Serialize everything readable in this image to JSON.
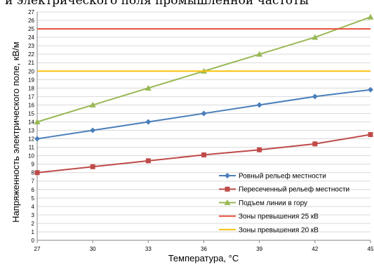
{
  "caption": "и электрического поля промышленной частоты",
  "chart_data": {
    "type": "line",
    "title": "",
    "xlabel": "Температура, °С",
    "ylabel": "Напряженность электрического поле, кВ/м",
    "x": [
      27,
      30,
      33,
      36,
      39,
      42,
      45
    ],
    "xlim": [
      27,
      45
    ],
    "ylim": [
      0,
      27
    ],
    "ytick_step": 1,
    "grid": "horizontal",
    "legend_position": "bottom-right-inside",
    "series": [
      {
        "name": "Ровный рельеф местности",
        "values": [
          12,
          13,
          14,
          15,
          16,
          17,
          17.8
        ],
        "color": "#4a7ebb",
        "marker": "diamond"
      },
      {
        "name": "Пересеченный рельеф местности",
        "values": [
          8,
          8.7,
          9.4,
          10.1,
          10.7,
          11.4,
          12.5
        ],
        "color": "#be4b48",
        "marker": "square"
      },
      {
        "name": "Подъем линии в гору",
        "values": [
          14,
          16,
          18,
          20,
          22,
          24,
          26.4
        ],
        "color": "#98b954",
        "marker": "triangle"
      },
      {
        "name": "Зоны превышения 25 кВ",
        "values": [
          25,
          25,
          25,
          25,
          25,
          25,
          25
        ],
        "color": "#e8513a",
        "marker": "none"
      },
      {
        "name": "Зоны превышения 20 кВ",
        "values": [
          20,
          20,
          20,
          20,
          20,
          20,
          20
        ],
        "color": "#fcc00a",
        "marker": "none"
      }
    ]
  }
}
